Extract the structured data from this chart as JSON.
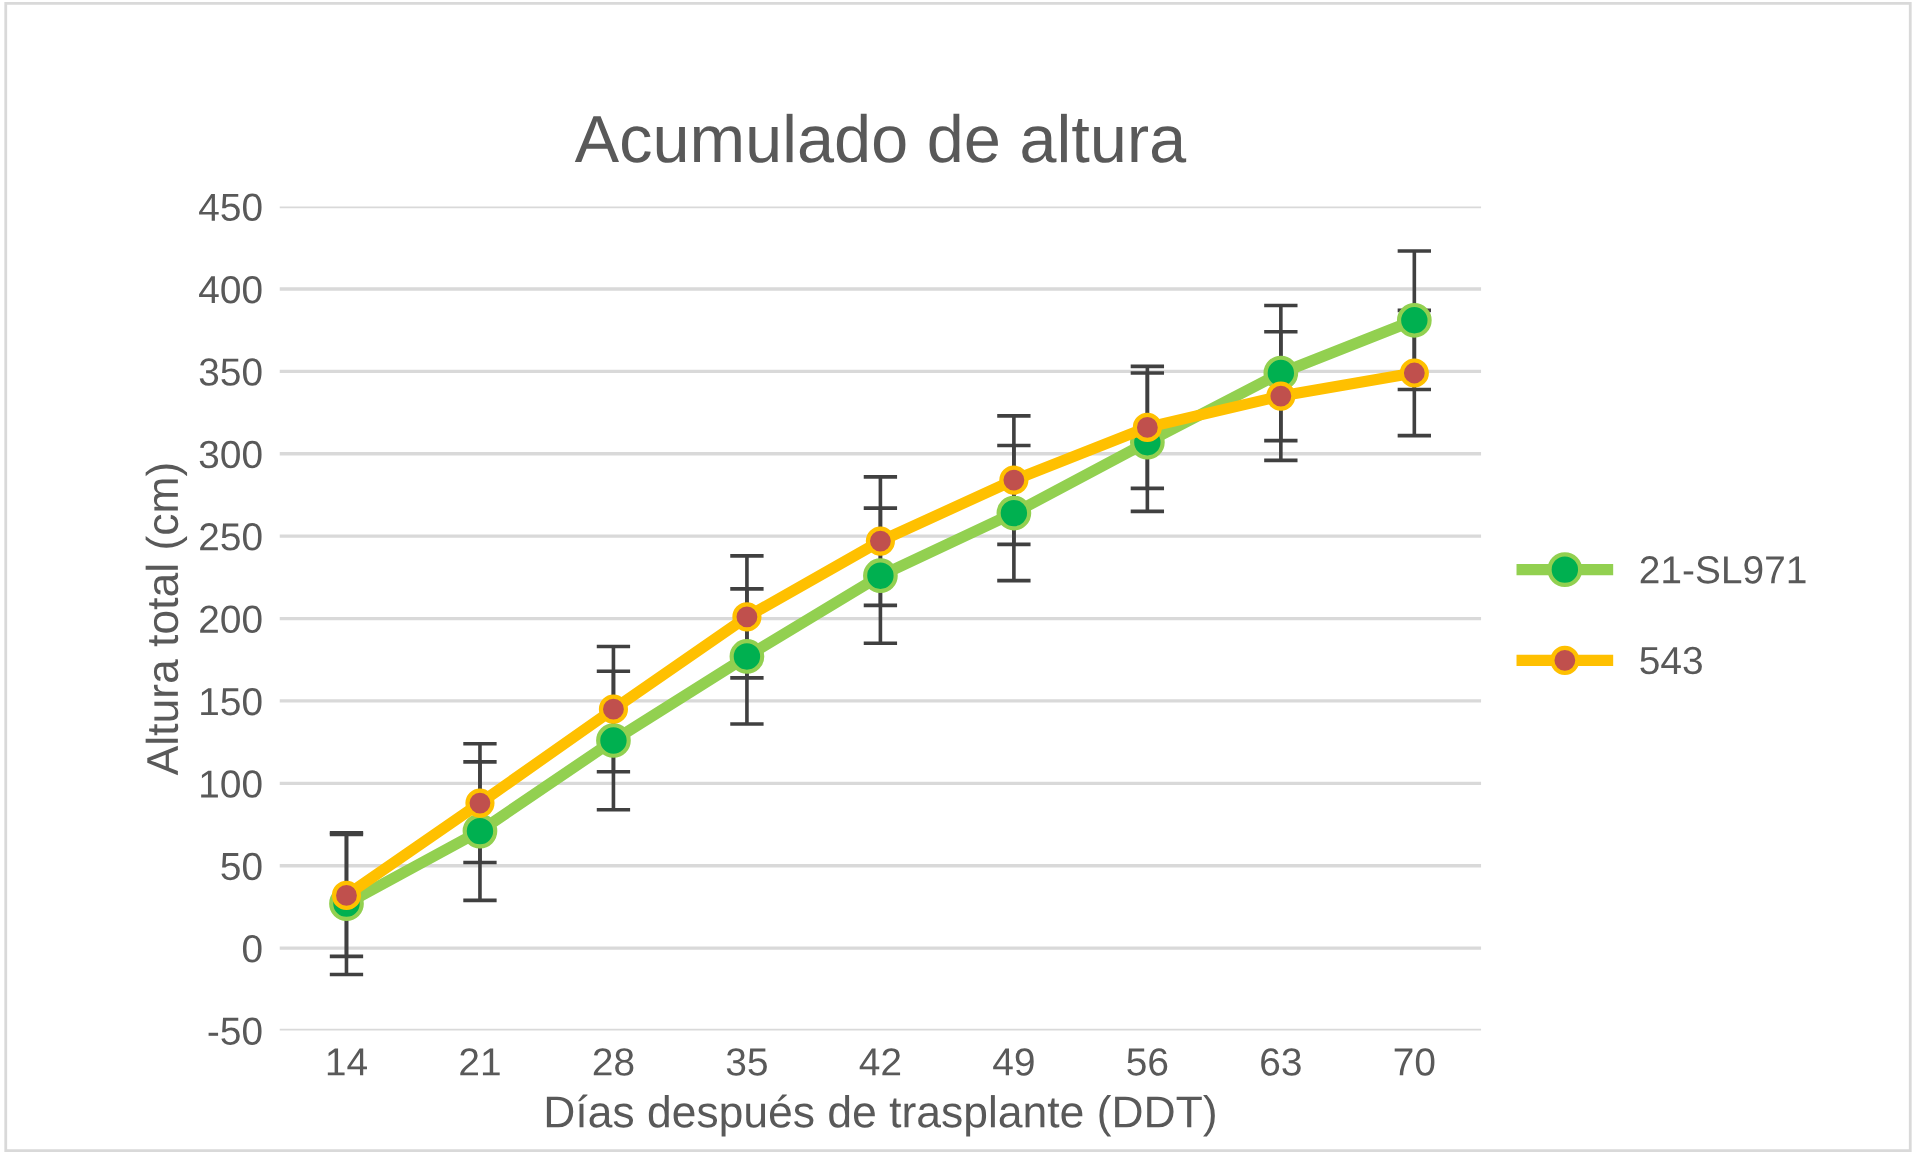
{
  "chart_data": {
    "type": "line",
    "title": "Acumulado de altura",
    "xlabel": "Días después de trasplante (DDT)",
    "ylabel": "Altura total (cm)",
    "categories": [
      "14",
      "21",
      "28",
      "35",
      "42",
      "49",
      "56",
      "63",
      "70"
    ],
    "series": [
      {
        "name": "21-SL971",
        "color": "#92d050",
        "values": [
          27,
          71,
          126,
          177,
          226,
          264,
          307,
          349,
          381
        ],
        "errors": [
          43,
          42,
          42,
          41,
          41,
          41,
          42,
          41,
          42
        ]
      },
      {
        "name": "543",
        "color": "#ffc000",
        "values": [
          32,
          88,
          145,
          201,
          247,
          284,
          316,
          335,
          349
        ],
        "errors": [
          37,
          36,
          38,
          37,
          39,
          39,
          37,
          39,
          38
        ]
      }
    ],
    "ylim": [
      -50,
      450
    ],
    "yticks": [
      -50,
      0,
      50,
      100,
      150,
      200,
      250,
      300,
      350,
      400,
      450
    ],
    "grid": "y",
    "legend": "right",
    "marker": "circle",
    "line_style": "solid"
  }
}
